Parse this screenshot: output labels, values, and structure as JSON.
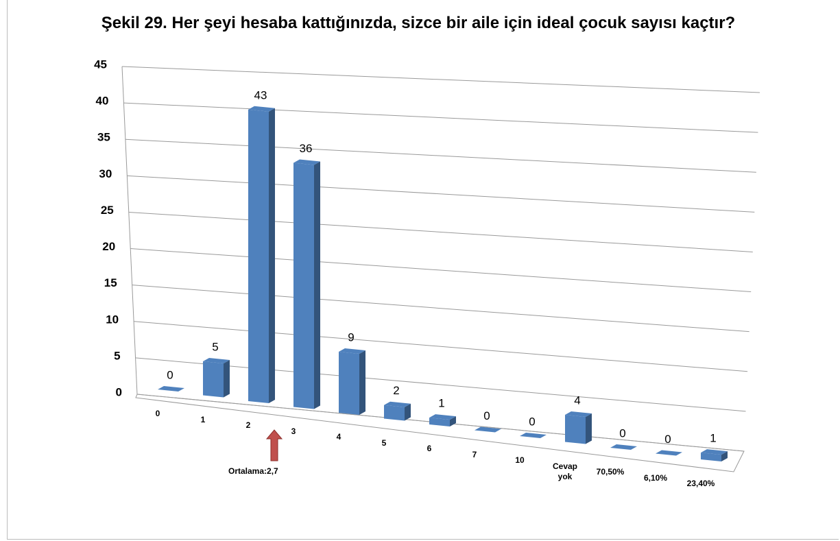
{
  "chart_data": {
    "type": "bar3d",
    "title": "Şekil 29. Her şeyi hesaba kattığınızda, sizce bir aile için ideal çocuk sayısı kaçtır?",
    "categories": [
      "0",
      "1",
      "2",
      "3",
      "4",
      "5",
      "6",
      "7",
      "10",
      "Cevap yok",
      "70,50%",
      "6,10%",
      "23,40%"
    ],
    "values": [
      0,
      5,
      43,
      36,
      9,
      2,
      1,
      0,
      0,
      4,
      0,
      0,
      1
    ],
    "color": "#4f81bd",
    "ylim": [
      0,
      45
    ],
    "yticks": [
      0,
      5,
      10,
      15,
      20,
      25,
      30,
      35,
      40,
      45
    ],
    "grid": true,
    "annotation": {
      "text": "Ortalama:2,7",
      "color": "#c0504d"
    }
  }
}
